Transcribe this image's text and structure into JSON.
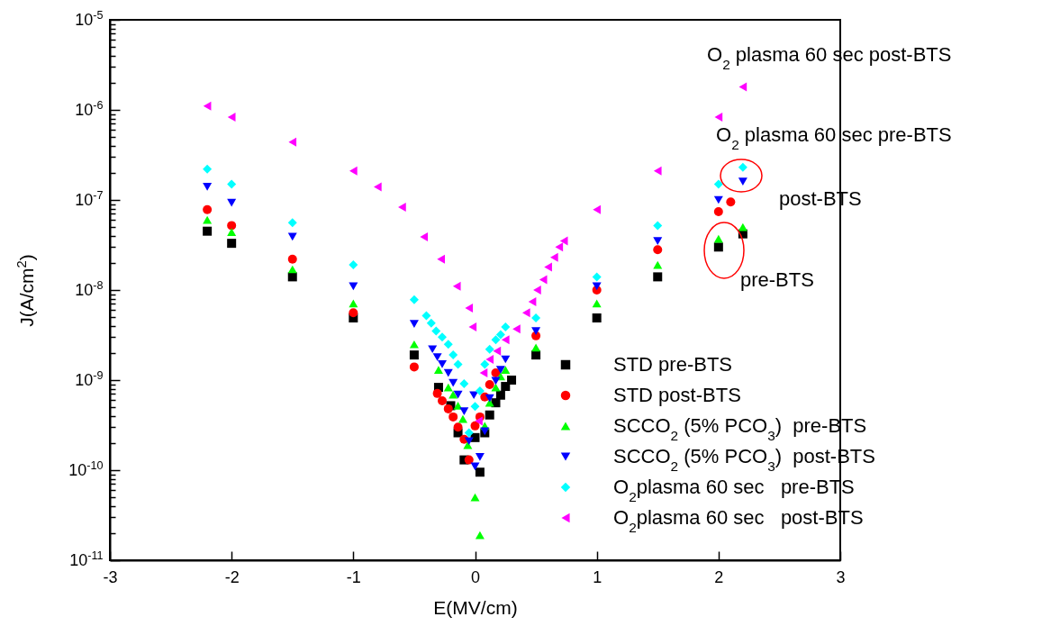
{
  "chart_data": {
    "type": "scatter",
    "xlabel": "E(MV/cm)",
    "ylabel": "J(A/cm$^{2}$)",
    "log": "y",
    "grid": false,
    "legend": "bottom right",
    "xlim": [
      -3,
      3
    ],
    "xticks": [
      -3,
      -2,
      -1,
      0,
      1,
      2,
      3
    ],
    "ylim": [
      1e-11,
      1e-05
    ],
    "yticks": [
      {
        "value": 1e-11,
        "label": "10$^{-11}$"
      },
      {
        "value": 2e-11,
        "label": null
      },
      {
        "value": 3e-11,
        "label": null
      },
      {
        "value": 4e-11,
        "label": null
      },
      {
        "value": 5e-11,
        "label": null
      },
      {
        "value": 6e-11,
        "label": null
      },
      {
        "value": 7e-11,
        "label": null
      },
      {
        "value": 8e-11,
        "label": null
      },
      {
        "value": 9e-11,
        "label": null
      },
      {
        "value": 1e-10,
        "label": "10$^{-10}$"
      },
      {
        "value": 2e-10,
        "label": null
      },
      {
        "value": 3e-10,
        "label": null
      },
      {
        "value": 4e-10,
        "label": null
      },
      {
        "value": 5e-10,
        "label": null
      },
      {
        "value": 6e-10,
        "label": null
      },
      {
        "value": 7e-10,
        "label": null
      },
      {
        "value": 8e-10,
        "label": null
      },
      {
        "value": 9e-10,
        "label": null
      },
      {
        "value": 1e-09,
        "label": "10$^{-9}$"
      },
      {
        "value": 2e-09,
        "label": null
      },
      {
        "value": 3e-09,
        "label": null
      },
      {
        "value": 4e-09,
        "label": null
      },
      {
        "value": 5e-09,
        "label": null
      },
      {
        "value": 6e-09,
        "label": null
      },
      {
        "value": 7e-09,
        "label": null
      },
      {
        "value": 8e-09,
        "label": null
      },
      {
        "value": 9e-09,
        "label": null
      },
      {
        "value": 1e-08,
        "label": "10$^{-8}$"
      },
      {
        "value": 2e-08,
        "label": null
      },
      {
        "value": 3e-08,
        "label": null
      },
      {
        "value": 4e-08,
        "label": null
      },
      {
        "value": 5e-08,
        "label": null
      },
      {
        "value": 6e-08,
        "label": null
      },
      {
        "value": 7e-08,
        "label": null
      },
      {
        "value": 8e-08,
        "label": null
      },
      {
        "value": 9e-08,
        "label": null
      },
      {
        "value": 1e-07,
        "label": "10$^{-7}$"
      },
      {
        "value": 2e-07,
        "label": null
      },
      {
        "value": 3e-07,
        "label": null
      },
      {
        "value": 4e-07,
        "label": null
      },
      {
        "value": 5e-07,
        "label": null
      },
      {
        "value": 6e-07,
        "label": null
      },
      {
        "value": 7e-07,
        "label": null
      },
      {
        "value": 8e-07,
        "label": null
      },
      {
        "value": 9e-07,
        "label": null
      },
      {
        "value": 1e-06,
        "label": "10$^{-6}$"
      },
      {
        "value": 2e-06,
        "label": null
      },
      {
        "value": 3e-06,
        "label": null
      },
      {
        "value": 4e-06,
        "label": null
      },
      {
        "value": 5e-06,
        "label": null
      },
      {
        "value": 6e-06,
        "label": null
      },
      {
        "value": 7e-06,
        "label": null
      },
      {
        "value": 8e-06,
        "label": null
      },
      {
        "value": 9e-06,
        "label": null
      },
      {
        "value": 1e-05,
        "label": "10$^{-5}$"
      }
    ],
    "series": [
      {
        "name": "STD pre-BTS",
        "color": "#000000",
        "marker": "square",
        "x": [
          -2.2,
          -2.0,
          -1.5,
          -1.0,
          -0.5,
          -0.3,
          -0.2,
          -0.14,
          -0.09,
          0.0,
          0.04,
          0.08,
          0.12,
          0.17,
          0.21,
          0.25,
          0.3,
          0.5,
          1.0,
          1.5,
          2.0,
          2.2
        ],
        "values": [
          4.5e-08,
          3.3e-08,
          1.4e-08,
          4.9e-09,
          1.9e-09,
          8.3e-10,
          5.2e-10,
          2.6e-10,
          1.3e-10,
          2.3e-10,
          9.5e-11,
          2.6e-10,
          4.1e-10,
          5.6e-10,
          6.8e-10,
          8.5e-10,
          1e-09,
          1.9e-09,
          4.9e-09,
          1.4e-08,
          3e-08,
          4.2e-08
        ]
      },
      {
        "name": "STD post-BTS",
        "color": "#ff0000",
        "marker": "circle",
        "x": [
          -2.2,
          -2.0,
          -1.5,
          -1.0,
          -0.5,
          -0.31,
          -0.27,
          -0.22,
          -0.18,
          -0.14,
          -0.09,
          -0.05,
          0.0,
          0.04,
          0.08,
          0.12,
          0.17,
          0.5,
          1.0,
          1.5,
          2.0,
          2.1
        ],
        "values": [
          7.8e-08,
          5.2e-08,
          2.2e-08,
          5.6e-09,
          1.4e-09,
          7.1e-10,
          5.9e-10,
          4.8e-10,
          3.9e-10,
          3e-10,
          2.2e-10,
          1.3e-10,
          3.1e-10,
          3.9e-10,
          6.5e-10,
          8.9e-10,
          1.2e-09,
          3.1e-09,
          1e-08,
          2.8e-08,
          7.4e-08,
          9.5e-08
        ]
      },
      {
        "name": "SCCO$_{2}$ (5% PCO$_{3}$)  pre-BTS",
        "color": "#00ff00",
        "marker": "triangle",
        "x": [
          -2.2,
          -2.0,
          -1.5,
          -1.0,
          -0.5,
          -0.3,
          -0.22,
          -0.18,
          -0.14,
          -0.1,
          -0.06,
          0.0,
          0.04,
          0.08,
          0.12,
          0.17,
          0.21,
          0.25,
          0.5,
          1.0,
          1.5,
          2.0,
          2.2
        ],
        "values": [
          6e-08,
          4.4e-08,
          1.7e-08,
          7.1e-09,
          2.5e-09,
          1.3e-09,
          8.3e-10,
          6.9e-10,
          5.2e-10,
          3.7e-10,
          1.9e-10,
          5e-11,
          1.9e-11,
          3.1e-10,
          5.6e-10,
          8.3e-10,
          1.1e-09,
          1.3e-09,
          2.3e-09,
          7.1e-09,
          1.9e-08,
          3.7e-08,
          5e-08
        ]
      },
      {
        "name": "SCCO$_{2}$ (5% PCO$_{3}$)  post-BTS",
        "color": "#0000ff",
        "marker": "triangle-down",
        "x": [
          -2.2,
          -2.0,
          -1.5,
          -1.0,
          -0.5,
          -0.35,
          -0.31,
          -0.27,
          -0.22,
          -0.18,
          -0.14,
          -0.09,
          -0.05,
          -0.01,
          0.0,
          0.04,
          0.08,
          0.12,
          0.17,
          0.21,
          0.25,
          0.5,
          1.0,
          1.5,
          2.0,
          2.2
        ],
        "values": [
          1.4e-07,
          9.3e-08,
          3.9e-08,
          1.1e-08,
          4.2e-09,
          2.2e-09,
          1.8e-09,
          1.5e-09,
          1.2e-09,
          9.3e-10,
          6.9e-10,
          4.5e-10,
          2.1e-10,
          6.8e-10,
          1.1e-10,
          1.4e-10,
          2.7e-10,
          6.3e-10,
          9.8e-10,
          1.3e-09,
          1.7e-09,
          3.5e-09,
          1.1e-08,
          3.5e-08,
          1e-07,
          1.6e-07
        ]
      },
      {
        "name": "O$_{2}$plasma 60 sec   pre-BTS",
        "color": "#00ffff",
        "marker": "diamond",
        "x": [
          -2.2,
          -2.0,
          -1.5,
          -1.0,
          -0.5,
          -0.4,
          -0.36,
          -0.32,
          -0.27,
          -0.22,
          -0.18,
          -0.14,
          -0.09,
          -0.05,
          0.0,
          0.04,
          0.08,
          0.12,
          0.17,
          0.21,
          0.25,
          0.5,
          1.0,
          1.5,
          2.0,
          2.2
        ],
        "values": [
          2.2e-07,
          1.5e-07,
          5.6e-08,
          1.9e-08,
          7.8e-09,
          5.2e-09,
          4.3e-09,
          3.5e-09,
          3e-09,
          2.5e-09,
          1.9e-09,
          1.5e-09,
          9.1e-10,
          2.6e-10,
          5.1e-10,
          7.6e-10,
          1.5e-09,
          2.2e-09,
          2.8e-09,
          3.2e-09,
          3.9e-09,
          4.9e-09,
          1.4e-08,
          5.2e-08,
          1.5e-07,
          2.3e-07
        ]
      },
      {
        "name": "O$_{2}$plasma 60 sec   post-BTS",
        "color": "#ff00ff",
        "marker": "triangle-left",
        "x": [
          -2.2,
          -2.0,
          -1.5,
          -1.0,
          -0.8,
          -0.6,
          -0.42,
          -0.28,
          -0.15,
          -0.05,
          -0.02,
          0.03,
          0.07,
          0.12,
          0.18,
          0.25,
          0.34,
          0.42,
          0.47,
          0.51,
          0.56,
          0.6,
          0.65,
          0.69,
          0.73,
          1.0,
          1.5,
          2.0,
          2.2
        ],
        "values": [
          1.1e-06,
          8.3e-07,
          4.4e-07,
          2.1e-07,
          1.4e-07,
          8.3e-08,
          3.9e-08,
          2.2e-08,
          1.1e-08,
          6.3e-09,
          3.9e-09,
          3.5e-10,
          1.2e-09,
          1.7e-09,
          2.1e-09,
          2.8e-09,
          3.7e-09,
          5.6e-09,
          7.4e-09,
          1e-08,
          1.3e-08,
          1.8e-08,
          2.3e-08,
          3e-08,
          3.5e-08,
          7.8e-08,
          2.1e-07,
          8.3e-07,
          1.8e-06
        ]
      }
    ],
    "annotations": [
      "O$_{2}$ plasma 60 sec post-BTS",
      "O$_{2}$ plasma 60 sec pre-BTS",
      "post-BTS",
      "pre-BTS"
    ]
  }
}
